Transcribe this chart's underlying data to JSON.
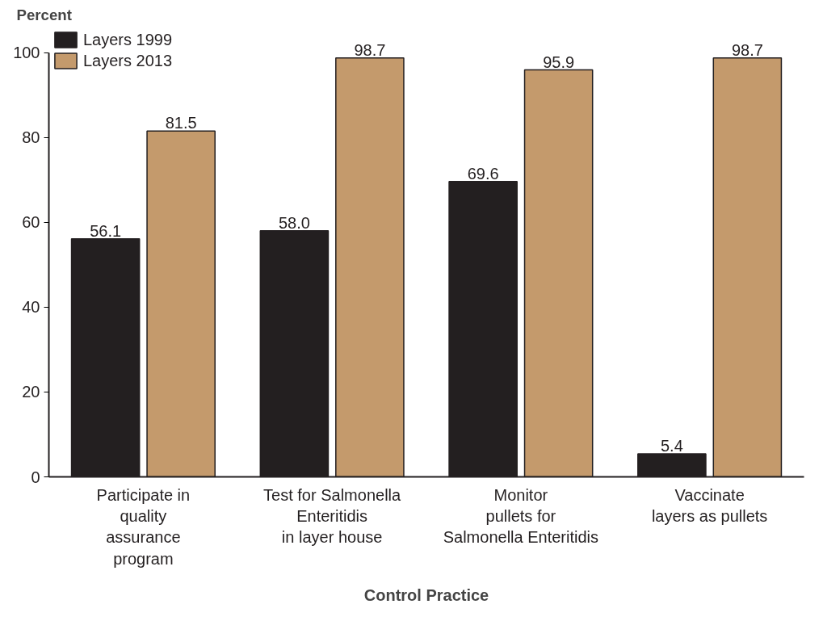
{
  "chart_data": {
    "type": "bar",
    "xlabel": "Control Practice",
    "ylabel": "Percent",
    "categories": [
      "Participate in\nquality\nassurance\nprogram",
      "Test for Salmonella\nEnteritidis\nin layer house",
      "Monitor\npullets for\nSalmonella Enteritidis",
      "Vaccinate\nlayers as pullets"
    ],
    "series": [
      {
        "name": "Layers 1999",
        "color": "#231f20",
        "values": [
          56.1,
          58.0,
          69.6,
          5.4
        ],
        "value_labels": [
          "56.1",
          "58.0",
          "69.6",
          "5.4"
        ]
      },
      {
        "name": "Layers 2013",
        "color": "#c49a6c",
        "values": [
          81.5,
          98.7,
          95.9,
          98.7
        ],
        "value_labels": [
          "81.5",
          "98.7",
          "95.9",
          "98.7"
        ]
      }
    ],
    "ylim": [
      0,
      100
    ],
    "yticks": [
      0,
      20,
      40,
      60,
      80,
      100
    ],
    "grid": false,
    "legend": "top left"
  }
}
